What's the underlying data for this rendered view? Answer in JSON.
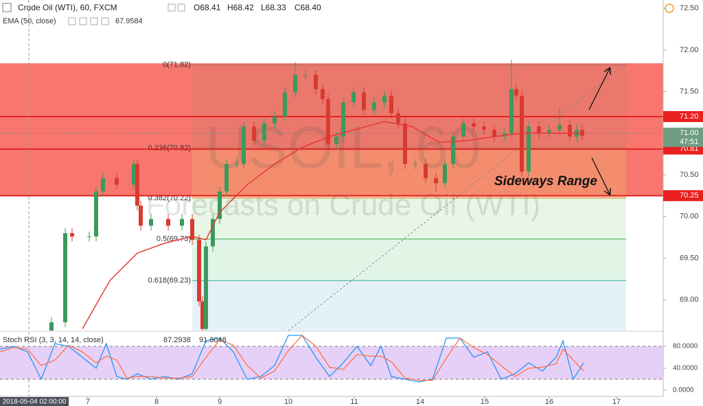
{
  "chart_data": [
    {
      "type": "candlestick",
      "title": "Crude Oil (WTI), 60, FXCM",
      "ohlc_text": [
        "O68.41",
        "H68.42",
        "L68.33",
        "C68.40"
      ],
      "up_color": "#3b9a5c",
      "down_color": "#d93a30",
      "x": [
        18.75,
        23.75,
        26.25,
        32.5,
        35,
        37.5,
        42.5,
        48.75,
        50,
        51.25,
        55,
        61.25,
        66.25,
        70,
        72.5,
        73.75,
        75,
        77.5,
        80,
        82.5,
        86.25,
        88.75,
        92.5,
        96.25,
        100,
        103.75,
        107.5,
        111.25,
        115,
        117.5,
        119.5,
        122.5,
        125,
        128.75,
        132.5,
        136.25,
        140,
        142.5,
        145,
        147.5,
        151.25,
        155,
        158.75,
        162,
        165,
        168.75,
        172.5,
        176.25,
        180,
        183.75,
        186.25,
        188,
        190,
        192.5,
        196.25,
        200,
        203.75,
        207.5,
        210,
        212
      ],
      "open": [
        68.6,
        68.73,
        69.8,
        69.76,
        69.76,
        70.3,
        70.46,
        70.38,
        70.63,
        70.13,
        69.89,
        69.97,
        69.89,
        69.97,
        69.72,
        68.98,
        68.65,
        69.64,
        69.97,
        70.3,
        70.63,
        70.63,
        71.08,
        70.91,
        71.12,
        71.2,
        71.49,
        71.7,
        71.7,
        71.53,
        71.41,
        70.87,
        70.96,
        71.37,
        71.49,
        71.28,
        71.37,
        71.45,
        71.24,
        71.12,
        70.63,
        70.63,
        70.46,
        70.4,
        70.63,
        70.96,
        71.12,
        71.08,
        71.04,
        70.96,
        71.0,
        71.53,
        71.45,
        70.54,
        71.08,
        71.0,
        71.04,
        71.1,
        70.96,
        71.04
      ],
      "high": [
        68.79,
        69.86,
        69.86,
        69.82,
        70.36,
        70.52,
        70.52,
        70.69,
        70.69,
        70.19,
        70.03,
        70.03,
        70.03,
        70.03,
        69.78,
        69.04,
        69.7,
        70.03,
        70.36,
        70.69,
        70.69,
        71.14,
        71.14,
        71.18,
        71.26,
        71.55,
        71.85,
        71.76,
        71.76,
        71.59,
        71.47,
        71.02,
        71.43,
        71.55,
        71.55,
        71.43,
        71.51,
        71.51,
        71.3,
        71.18,
        70.69,
        70.69,
        70.52,
        70.69,
        71.02,
        71.18,
        71.18,
        71.14,
        71.1,
        71.06,
        71.88,
        71.59,
        71.51,
        71.14,
        71.14,
        71.1,
        71.3,
        71.16,
        71.1,
        71.1
      ],
      "low": [
        68.54,
        68.67,
        69.7,
        69.7,
        69.7,
        70.24,
        70.32,
        70.32,
        70.07,
        69.83,
        69.83,
        69.83,
        69.83,
        69.66,
        68.92,
        68.59,
        68.59,
        69.58,
        69.91,
        70.24,
        70.57,
        70.57,
        70.85,
        70.85,
        71.06,
        71.14,
        71.43,
        71.64,
        71.47,
        71.35,
        70.81,
        70.81,
        70.9,
        71.31,
        71.22,
        71.22,
        71.31,
        71.18,
        71.06,
        70.57,
        70.57,
        70.4,
        70.3,
        70.34,
        70.57,
        70.9,
        71.02,
        70.98,
        70.9,
        70.9,
        70.94,
        71.39,
        70.48,
        70.48,
        70.94,
        70.94,
        70.98,
        70.9,
        70.9,
        70.91
      ],
      "close": [
        68.73,
        69.8,
        69.76,
        69.76,
        70.3,
        70.46,
        70.38,
        70.63,
        70.13,
        69.89,
        69.97,
        69.89,
        69.97,
        69.72,
        68.98,
        68.65,
        69.64,
        69.97,
        70.3,
        70.63,
        70.63,
        71.08,
        70.91,
        71.12,
        71.2,
        71.49,
        71.7,
        71.7,
        71.53,
        71.41,
        70.87,
        70.96,
        71.37,
        71.49,
        71.28,
        71.37,
        71.45,
        71.24,
        71.12,
        70.63,
        70.63,
        70.46,
        70.4,
        70.63,
        70.96,
        71.12,
        71.08,
        71.04,
        70.96,
        71.0,
        71.53,
        71.45,
        70.54,
        71.08,
        71.0,
        71.04,
        71.1,
        70.96,
        71.04,
        70.97
      ],
      "xlim": [
        0,
        241.5
      ],
      "xticks": [
        {
          "value": 32,
          "label": "7"
        },
        {
          "value": 57,
          "label": "8"
        },
        {
          "value": 80,
          "label": "9"
        },
        {
          "value": 105,
          "label": "10"
        },
        {
          "value": 129,
          "label": "11"
        },
        {
          "value": 153,
          "label": "14"
        },
        {
          "value": 176.5,
          "label": "15"
        },
        {
          "value": 200,
          "label": "16"
        },
        {
          "value": 224.5,
          "label": "17"
        }
      ],
      "ylim": [
        68.63,
        72.6
      ],
      "yticks": [
        {
          "value": 72.5,
          "label": "72.50"
        },
        {
          "value": 72,
          "label": "72.00"
        },
        {
          "value": 71.5,
          "label": "71.50"
        },
        {
          "value": 71,
          "label": "71.00"
        },
        {
          "value": 70.5,
          "label": "70.50"
        },
        {
          "value": 70,
          "label": "70.00"
        },
        {
          "value": 69.5,
          "label": "69.50"
        },
        {
          "value": 69,
          "label": "69.00"
        }
      ],
      "ema": {
        "name": "EMA (50, close)",
        "value_label": "67.9584",
        "color": "#e53935",
        "x": [
          30,
          40,
          50,
          60,
          70,
          75,
          80,
          90,
          100,
          110,
          120,
          130,
          140,
          150,
          160,
          170,
          180,
          190,
          200,
          212.5
        ],
        "values": [
          68.65,
          69.23,
          69.56,
          69.68,
          69.76,
          69.72,
          70.05,
          70.38,
          70.63,
          70.83,
          70.96,
          71.05,
          71.14,
          71.08,
          70.89,
          70.91,
          70.96,
          71.0,
          71.0,
          71.0
        ]
      },
      "range_box": {
        "top": 71.84,
        "bottom": 70.25,
        "color": "#f44336"
      },
      "levels": [
        {
          "value": 71.2,
          "label": "71.20"
        },
        {
          "value": 70.81,
          "label": "70.81"
        },
        {
          "value": 70.25,
          "label": "70.25"
        }
      ],
      "level_color": "#e8201e",
      "last_price": {
        "value": 71.0,
        "label": "71.00",
        "countdown": "47:51",
        "color": "#6f9c83"
      },
      "fib": {
        "xlim": [
          70,
          228
        ],
        "levels": [
          {
            "value": 71.82,
            "label": "0(71.82)",
            "color": "#b06a6a"
          },
          {
            "value": 70.82,
            "label": "0.236(70.82)",
            "color": "#a0786a"
          },
          {
            "value": 70.22,
            "label": "0.382(70.22)",
            "color": "#c9a13a"
          },
          {
            "value": 69.73,
            "label": "0.5(69.73)",
            "color": "#4caf50"
          },
          {
            "value": 69.23,
            "label": "0.618(69.23)",
            "color": "#26a69a"
          }
        ],
        "colors": [
          "#e07a6e",
          "#f0a070",
          "#d4efcf",
          "#c9ecd4",
          "#cfe6f3"
        ]
      },
      "annotations": [
        "Sideways Range"
      ],
      "watermark": [
        "USOIL, 60",
        "Forecasts on Crude Oil (WTI)"
      ],
      "crosshair": {
        "x": 10.5,
        "label": "2018-05-04 02:00:00"
      }
    },
    {
      "type": "line",
      "title": "Stoch RSI (3, 3, 14, 14, close)",
      "x": [
        0,
        5,
        10,
        15,
        20,
        25,
        30,
        35,
        38.75,
        42.5,
        46.25,
        50,
        55,
        60,
        65,
        70,
        75,
        80,
        85,
        90,
        95,
        100,
        105,
        110,
        115,
        120,
        125,
        130,
        135,
        138.75,
        142.5,
        147.5,
        152.5,
        157.5,
        162.5,
        167.5,
        172.5,
        177.5,
        182.5,
        187.5,
        192.5,
        197.5,
        202.5,
        205,
        208.75,
        212.5
      ],
      "series": [
        {
          "color": "#2196f3",
          "value_label": "87.2938",
          "values": [
            75,
            80,
            70,
            20,
            85,
            80,
            60,
            40,
            85,
            25,
            20,
            30,
            20,
            25,
            20,
            30,
            90,
            95,
            70,
            20,
            25,
            45,
            100,
            100,
            60,
            25,
            50,
            80,
            45,
            80,
            25,
            20,
            15,
            20,
            95,
            95,
            60,
            70,
            20,
            30,
            50,
            35,
            60,
            90,
            20,
            50
          ]
        },
        {
          "color": "#ff7043",
          "value_label": "91.8048",
          "values": [
            70,
            78,
            75,
            45,
            55,
            82,
            70,
            50,
            62,
            55,
            22,
            25,
            25,
            22,
            22,
            25,
            60,
            92,
            82,
            45,
            22,
            35,
            72,
            100,
            80,
            42,
            38,
            65,
            62,
            62,
            52,
            22,
            18,
            18,
            58,
            95,
            78,
            65,
            45,
            25,
            40,
            42,
            48,
            75,
            55,
            35
          ]
        }
      ],
      "band": [
        20,
        80
      ],
      "band_color": "#e3c8f7",
      "ylim": [
        -11.25,
        103.75
      ],
      "yticks": [
        {
          "value": 80,
          "label": "80.0000"
        },
        {
          "value": 40,
          "label": "40.0000"
        },
        {
          "value": 0,
          "label": "0.0000"
        }
      ]
    }
  ]
}
